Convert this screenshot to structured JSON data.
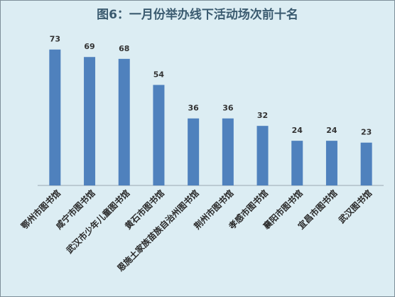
{
  "chart_data": {
    "type": "bar",
    "title": "图6：一月份举办线下活动场次前十名",
    "categories": [
      "鄂州市图书馆",
      "咸宁市图书馆",
      "武汉市少年儿童图书馆",
      "黄石市图书馆",
      "恩施土家族苗族自治州图书馆",
      "荆州市图书馆",
      "孝感市图书馆",
      "襄阳市图书馆",
      "宜昌市图书馆",
      "武汉图书馆"
    ],
    "values": [
      73,
      69,
      68,
      54,
      36,
      36,
      32,
      24,
      24,
      23
    ],
    "color": "#4f81bd"
  }
}
